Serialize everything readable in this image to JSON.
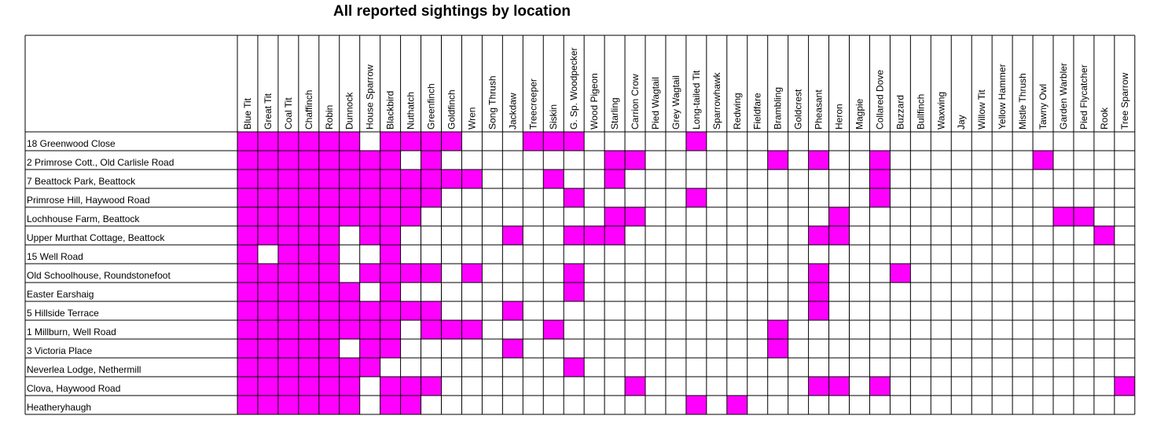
{
  "title": "All reported sightings by location",
  "colors": {
    "present": "#ff00ff",
    "absent": "#ffffff",
    "grid": "#000000"
  },
  "chart_data": {
    "type": "heatmap",
    "title": "All reported sightings by location",
    "legend": "none",
    "grid": true,
    "species": [
      "Blue Tit",
      "Great Tit",
      "Coal Tit",
      "Chaffinch",
      "Robin",
      "Dunnock",
      "House Sparrow",
      "Blackbird",
      "Nuthatch",
      "Greenfinch",
      "Goldfinch",
      "Wren",
      "Song Thrush",
      "Jackdaw",
      "Treecreeper",
      "Siskin",
      "G. Sp. Woodpecker",
      "Wood Pigeon",
      "Starling",
      "Carrion Crow",
      "Pied Wagtail",
      "Grey Wagtail",
      "Long-tailed Tit",
      "Sparrowhawk",
      "Redwing",
      "Fieldfare",
      "Brambling",
      "Goldcrest",
      "Pheasant",
      "Heron",
      "Magpie",
      "Collared Dove",
      "Buzzard",
      "Bullfinch",
      "Waxwing",
      "Jay",
      "Willow Tit",
      "Yellow Hammer",
      "Mistle Thrush",
      "Tawny Owl",
      "Garden Warbler",
      "Pied Flycatcher",
      "Rook",
      "Tree Sparrow"
    ],
    "locations": [
      "18 Greenwood Close",
      "2 Primrose Cott., Old Carlisle Road",
      "7 Beattock Park, Beattock",
      "Primrose Hill, Haywood Road",
      "Lochhouse Farm, Beattock",
      "Upper Murthat Cottage, Beattock",
      "15 Well Road",
      "Old Schoolhouse, Roundstonefoot",
      "Easter Earshaig",
      "5 Hillside Terrace",
      "1 Millburn, Well Road",
      "3 Victoria Place",
      "Neverlea Lodge, Nethermill",
      "Clova, Haywood Road",
      "Heatheryhaugh"
    ],
    "sightings": [
      [
        "Blue Tit",
        "Great Tit",
        "Coal Tit",
        "Chaffinch",
        "Robin",
        "Dunnock",
        "Blackbird",
        "Nuthatch",
        "Greenfinch",
        "Goldfinch",
        "Treecreeper",
        "Siskin",
        "G. Sp. Woodpecker",
        "Long-tailed Tit"
      ],
      [
        "Blue Tit",
        "Great Tit",
        "Coal Tit",
        "Chaffinch",
        "Robin",
        "Dunnock",
        "House Sparrow",
        "Blackbird",
        "Greenfinch",
        "Starling",
        "Carrion Crow",
        "Brambling",
        "Pheasant",
        "Collared Dove",
        "Tawny Owl"
      ],
      [
        "Blue Tit",
        "Great Tit",
        "Coal Tit",
        "Chaffinch",
        "Robin",
        "Dunnock",
        "House Sparrow",
        "Blackbird",
        "Nuthatch",
        "Greenfinch",
        "Goldfinch",
        "Wren",
        "Siskin",
        "Starling",
        "Collared Dove"
      ],
      [
        "Blue Tit",
        "Great Tit",
        "Coal Tit",
        "Chaffinch",
        "Robin",
        "Dunnock",
        "House Sparrow",
        "Blackbird",
        "Nuthatch",
        "Greenfinch",
        "G. Sp. Woodpecker",
        "Long-tailed Tit",
        "Collared Dove"
      ],
      [
        "Blue Tit",
        "Great Tit",
        "Coal Tit",
        "Chaffinch",
        "Robin",
        "Dunnock",
        "House Sparrow",
        "Blackbird",
        "Nuthatch",
        "Starling",
        "Carrion Crow",
        "Heron",
        "Garden Warbler",
        "Pied Flycatcher"
      ],
      [
        "Blue Tit",
        "Great Tit",
        "Coal Tit",
        "Chaffinch",
        "Robin",
        "House Sparrow",
        "Blackbird",
        "Jackdaw",
        "G. Sp. Woodpecker",
        "Wood Pigeon",
        "Starling",
        "Pheasant",
        "Heron",
        "Rook"
      ],
      [
        "Blue Tit",
        "Coal Tit",
        "Chaffinch",
        "Robin",
        "Blackbird"
      ],
      [
        "Blue Tit",
        "Great Tit",
        "Coal Tit",
        "Chaffinch",
        "Robin",
        "House Sparrow",
        "Blackbird",
        "Nuthatch",
        "Greenfinch",
        "Wren",
        "G. Sp. Woodpecker",
        "Pheasant",
        "Buzzard"
      ],
      [
        "Blue Tit",
        "Great Tit",
        "Coal Tit",
        "Chaffinch",
        "Robin",
        "Dunnock",
        "Blackbird",
        "G. Sp. Woodpecker",
        "Pheasant"
      ],
      [
        "Blue Tit",
        "Great Tit",
        "Coal Tit",
        "Chaffinch",
        "Robin",
        "Dunnock",
        "House Sparrow",
        "Blackbird",
        "Nuthatch",
        "Greenfinch",
        "Jackdaw",
        "Pheasant"
      ],
      [
        "Blue Tit",
        "Great Tit",
        "Coal Tit",
        "Chaffinch",
        "Robin",
        "Dunnock",
        "House Sparrow",
        "Blackbird",
        "Greenfinch",
        "Goldfinch",
        "Wren",
        "Siskin",
        "Brambling"
      ],
      [
        "Blue Tit",
        "Great Tit",
        "Coal Tit",
        "Chaffinch",
        "Robin",
        "House Sparrow",
        "Blackbird",
        "Jackdaw",
        "Brambling"
      ],
      [
        "Blue Tit",
        "Great Tit",
        "Coal Tit",
        "Chaffinch",
        "Robin",
        "Dunnock",
        "House Sparrow",
        "G. Sp. Woodpecker"
      ],
      [
        "Blue Tit",
        "Great Tit",
        "Coal Tit",
        "Chaffinch",
        "Robin",
        "Dunnock",
        "Blackbird",
        "Nuthatch",
        "Greenfinch",
        "Carrion Crow",
        "Pheasant",
        "Heron",
        "Collared Dove",
        "Tree Sparrow"
      ],
      [
        "Blue Tit",
        "Great Tit",
        "Coal Tit",
        "Chaffinch",
        "Robin",
        "Dunnock",
        "Blackbird",
        "Nuthatch",
        "Long-tailed Tit",
        "Redwing"
      ]
    ]
  }
}
